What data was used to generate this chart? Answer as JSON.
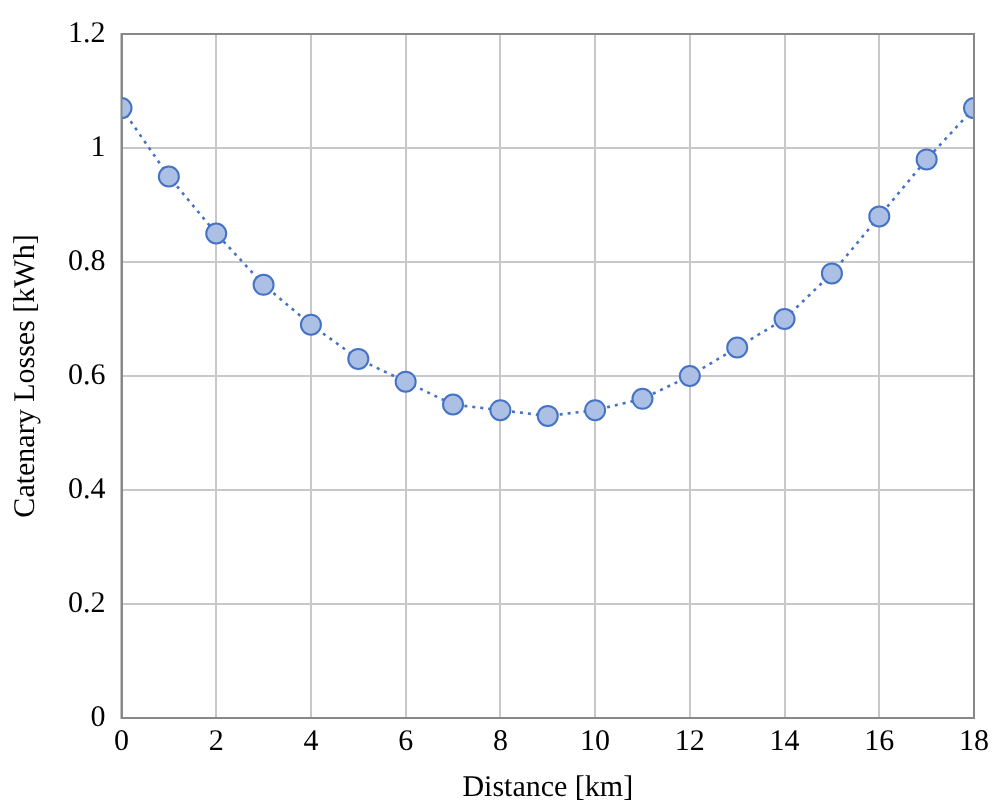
{
  "chart_data": {
    "type": "line",
    "xlabel": "Distance [km]",
    "ylabel": "Catenary Losses [kWh]",
    "x": [
      0,
      1,
      2,
      3,
      4,
      5,
      6,
      7,
      8,
      9,
      10,
      11,
      12,
      13,
      14,
      15,
      16,
      17,
      18
    ],
    "series": [
      {
        "color": "#4472c4",
        "values": [
          1.07,
          0.95,
          0.85,
          0.76,
          0.69,
          0.63,
          0.59,
          0.55,
          0.54,
          0.53,
          0.54,
          0.56,
          0.6,
          0.65,
          0.7,
          0.78,
          0.88,
          0.98,
          1.07
        ]
      }
    ],
    "xlim": [
      0,
      18
    ],
    "xticks": [
      0,
      2,
      4,
      6,
      8,
      10,
      12,
      14,
      16,
      18
    ],
    "ylim": [
      0,
      1.2
    ],
    "yticks": [
      0,
      0.2,
      0.4,
      0.6,
      0.8,
      1,
      1.2
    ],
    "grid": true,
    "legend": false,
    "marker": "circle",
    "line_style": "dotted"
  }
}
